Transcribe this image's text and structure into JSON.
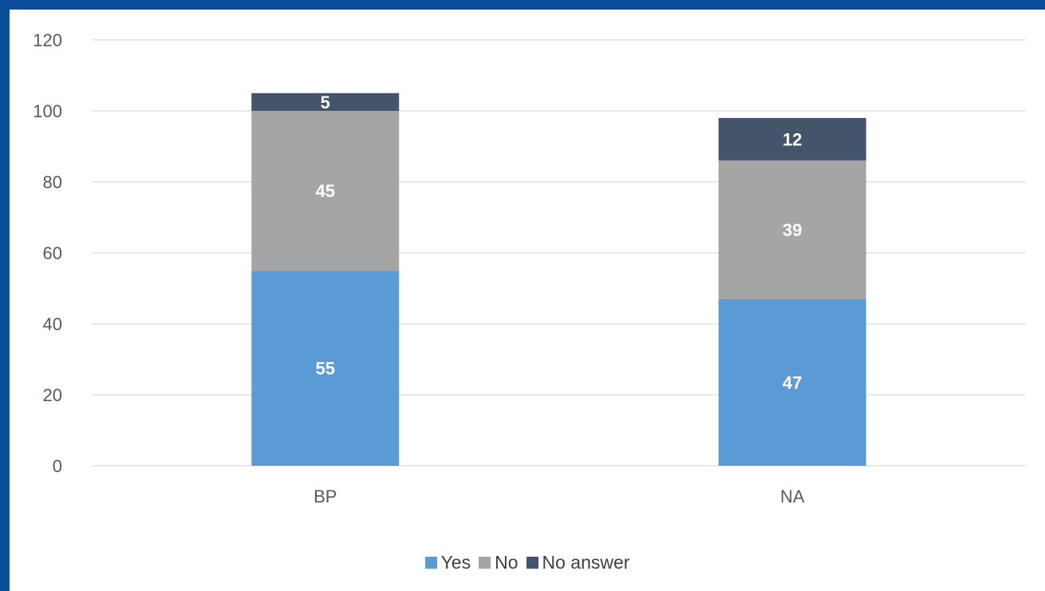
{
  "chart_data": {
    "type": "bar",
    "stacked": true,
    "categories": [
      "BP",
      "NA"
    ],
    "series": [
      {
        "name": "Yes",
        "values": [
          55,
          47
        ],
        "color": "#5b9bd5"
      },
      {
        "name": "No",
        "values": [
          45,
          39
        ],
        "color": "#a5a5a5"
      },
      {
        "name": "No answer",
        "values": [
          5,
          12
        ],
        "color": "#44546a"
      }
    ],
    "ylim": [
      0,
      120
    ],
    "yticks": [
      0,
      20,
      40,
      60,
      80,
      100,
      120
    ],
    "grid": true,
    "legend_position": "bottom",
    "title": "",
    "xlabel": "",
    "ylabel": ""
  }
}
